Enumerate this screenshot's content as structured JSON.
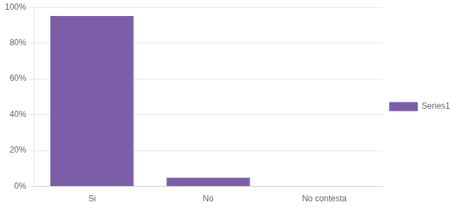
{
  "chart_data": {
    "type": "bar",
    "categories": [
      "Si",
      "No",
      "No contesta"
    ],
    "series": [
      {
        "name": "Series1",
        "color": "#7B5EA7",
        "values": [
          0.95,
          0.05,
          0.0
        ]
      }
    ],
    "ylim": [
      0,
      1.0
    ],
    "yticks": [
      {
        "value": 0.0,
        "label": "0%"
      },
      {
        "value": 0.2,
        "label": "20%"
      },
      {
        "value": 0.4,
        "label": "40%"
      },
      {
        "value": 0.6,
        "label": "60%"
      },
      {
        "value": 0.8,
        "label": "80%"
      },
      {
        "value": 1.0,
        "label": "100%"
      }
    ],
    "grid": true,
    "legend": "right"
  }
}
